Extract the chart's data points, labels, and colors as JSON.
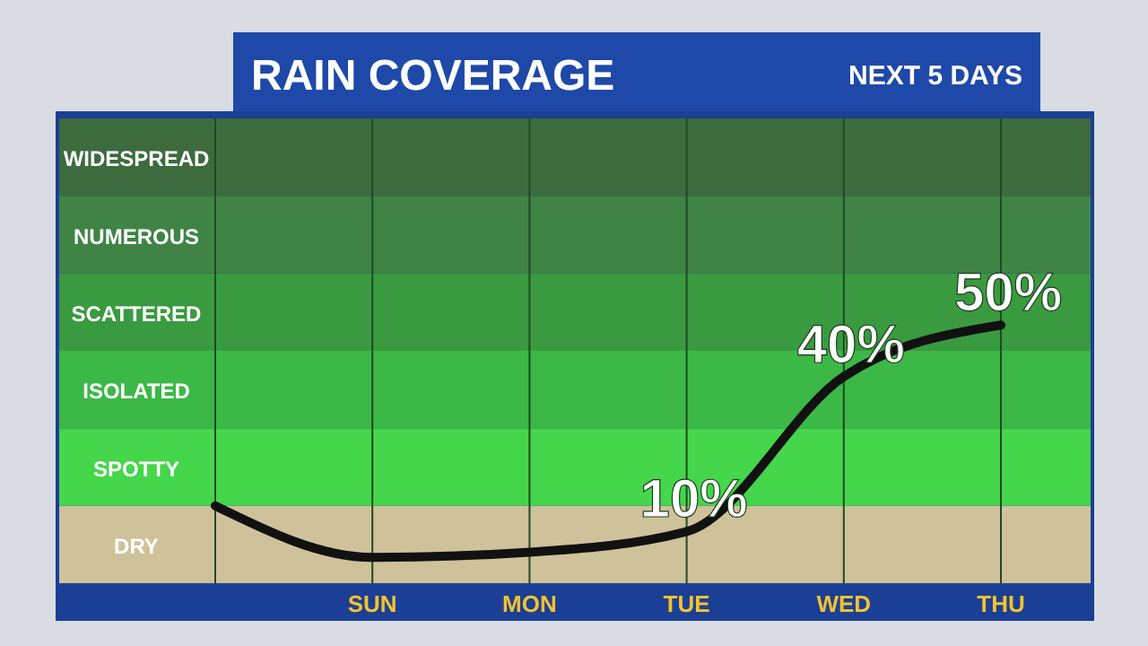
{
  "chart_data": {
    "type": "line",
    "title": "RAIN COVERAGE",
    "subtitle": "NEXT 5 DAYS",
    "categories": [
      null,
      "SUN",
      "MON",
      "TUE",
      "WED",
      "THU"
    ],
    "series": [
      {
        "color": "#111111",
        "values": [
          15,
          5,
          6,
          10,
          40,
          50
        ],
        "value_labels": [
          null,
          null,
          null,
          "10%",
          "40%",
          "50%"
        ]
      }
    ],
    "ylim": [
      0,
      90
    ],
    "tick_labels": "x",
    "bands": [
      {
        "axis": "y",
        "from": 0,
        "to": 15,
        "color": "#cfc29a",
        "label": "DRY"
      },
      {
        "axis": "y",
        "from": 15,
        "to": 30,
        "color": "#45d64b",
        "label": "SPOTTY"
      },
      {
        "axis": "y",
        "from": 30,
        "to": 45,
        "color": "#3cb846",
        "label": "ISOLATED"
      },
      {
        "axis": "y",
        "from": 45,
        "to": 60,
        "color": "#3a9a40",
        "label": "SCATTERED"
      },
      {
        "axis": "y",
        "from": 60,
        "to": 75,
        "color": "#3f8445",
        "label": "NUMEROUS"
      },
      {
        "axis": "y",
        "from": 75,
        "to": 90,
        "color": "#3d6b3e",
        "label": "WIDESPREAD"
      }
    ],
    "grid": "x",
    "line_style": "solid",
    "marker": "none"
  }
}
